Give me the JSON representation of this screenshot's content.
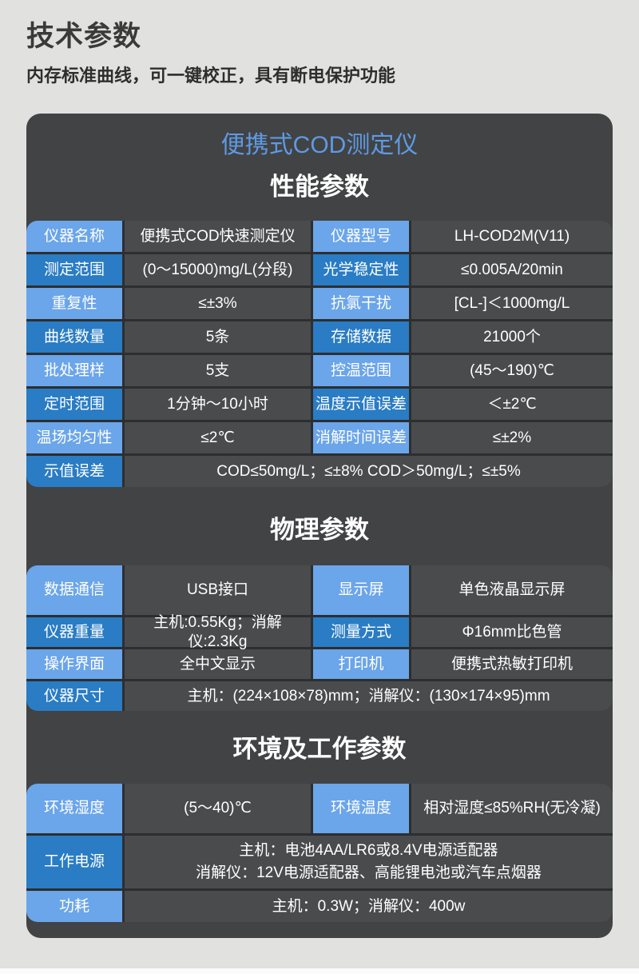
{
  "page": {
    "title": "技术参数",
    "subtitle": "内存标准曲线，可一键校正，具有断电保护功能"
  },
  "panel": {
    "product_title": "便携式COD测定仪",
    "accent_blue_light": "#6ba5ea",
    "accent_blue_dark": "#2a7cc4",
    "title_blue": "#5e9ae4",
    "panel_bg": "#424344"
  },
  "sections": {
    "performance": {
      "heading": "性能参数"
    },
    "physical": {
      "heading": "物理参数"
    },
    "environment": {
      "heading": "环境及工作参数"
    }
  },
  "performance_table": {
    "rows": [
      {
        "label1": "仪器名称",
        "value1": "便携式COD快速测定仪",
        "label2": "仪器型号",
        "value2": "LH-COD2M(V11)"
      },
      {
        "label1": "测定范围",
        "value1": "(0～15000)mg/L(分段)",
        "label2": "光学稳定性",
        "value2": "≤0.005A/20min"
      },
      {
        "label1": "重复性",
        "value1": "≤±3%",
        "label2": "抗氯干扰",
        "value2": "[CL-]＜1000mg/L"
      },
      {
        "label1": "曲线数量",
        "value1": "5条",
        "label2": "存储数据",
        "value2": "21000个"
      },
      {
        "label1": "批处理样",
        "value1": "5支",
        "label2": "控温范围",
        "value2": "(45～190)℃"
      },
      {
        "label1": "定时范围",
        "value1": "1分钟～10小时",
        "label2": "温度示值误差",
        "value2": "＜±2℃"
      },
      {
        "label1": "温场均匀性",
        "value1": "≤2℃",
        "label2": "消解时间误差",
        "value2": "≤±2%"
      },
      {
        "label1": "示值误差",
        "value_span": "COD≤50mg/L；≤±8%  COD＞50mg/L；≤±5%"
      }
    ]
  },
  "physical_table": {
    "rows": [
      {
        "label1": "数据通信",
        "value1": "USB接口",
        "label2": "显示屏",
        "value2": "单色液晶显示屏"
      },
      {
        "label1": "仪器重量",
        "value1": "主机:0.55Kg；消解仪:2.3Kg",
        "label2": "测量方式",
        "value2": "Φ16mm比色管"
      },
      {
        "label1": "操作界面",
        "value1": "全中文显示",
        "label2": "打印机",
        "value2": "便携式热敏打印机"
      },
      {
        "label1": "仪器尺寸",
        "value_span": "主机：(224×108×78)mm；消解仪：(130×174×95)mm"
      }
    ]
  },
  "environment_table": {
    "rows": [
      {
        "label1": "环境湿度",
        "value1": "(5～40)℃",
        "label2": "环境温度",
        "value2": "相对湿度≤85%RH(无冷凝)"
      },
      {
        "label1": "工作电源",
        "value_lines": [
          "主机：电池4AA/LR6或8.4V电源适配器",
          "消解仪：12V电源适配器、高能锂电池或汽车点烟器"
        ]
      },
      {
        "label1": "功耗",
        "value_span": "主机：0.3W；消解仪：400w"
      }
    ]
  }
}
